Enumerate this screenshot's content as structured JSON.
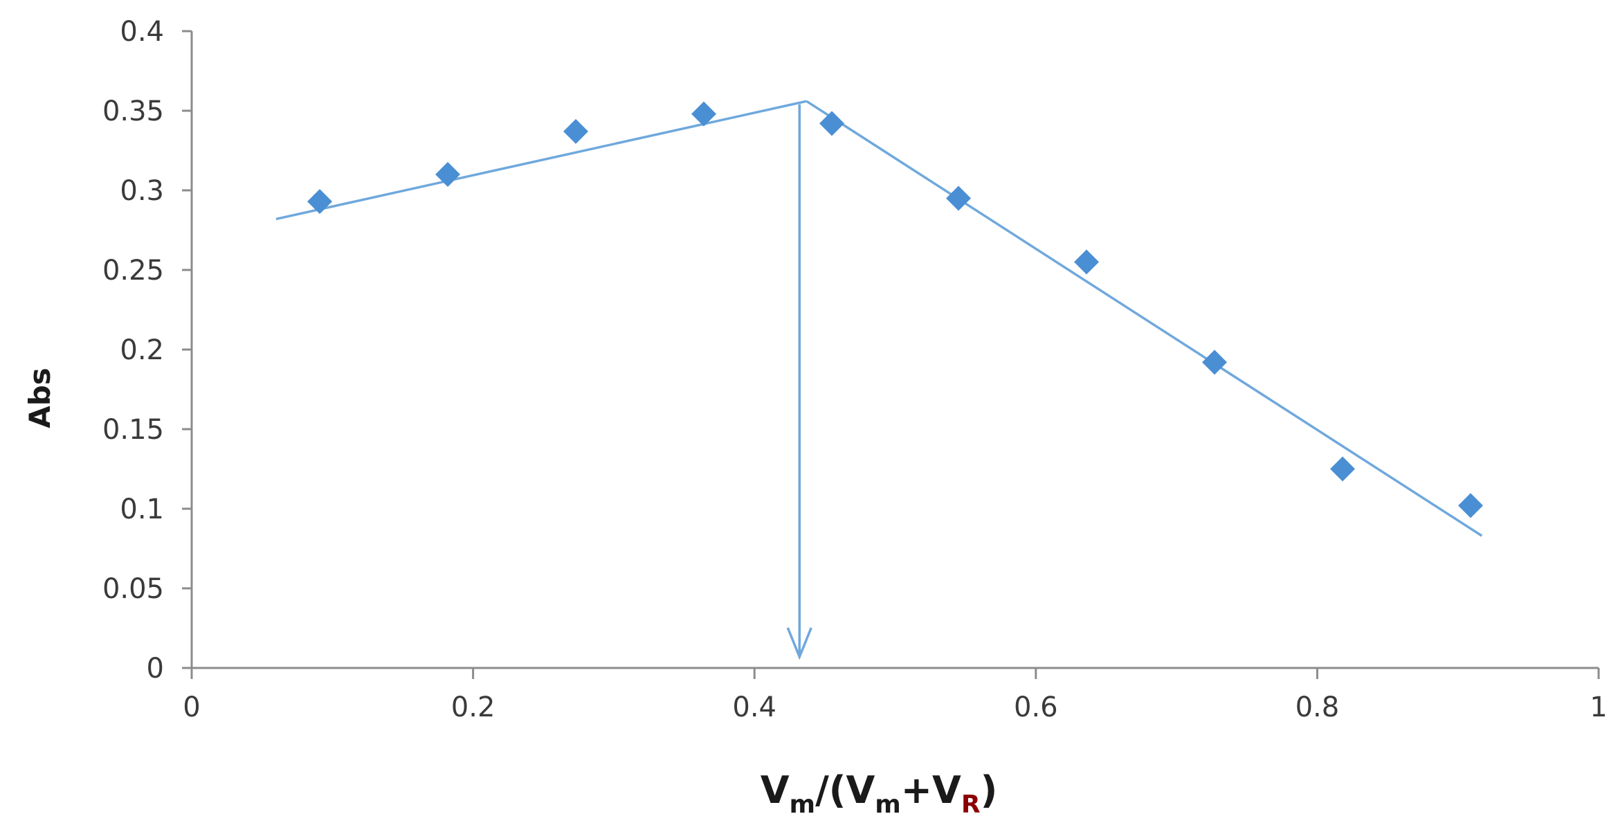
{
  "colors": {
    "axis": "#8c8c8c",
    "marker": "#4a8fd4",
    "trendline": "#6fa8dc",
    "subscript_r": "#8b0000"
  },
  "icons": {
    "marker_shape": "diamond",
    "annotation": "down-arrow"
  },
  "chart_data": {
    "type": "scatter",
    "title": "",
    "ylabel": "Abs",
    "xlabel": {
      "parts": [
        {
          "text": "V",
          "sub": false
        },
        {
          "text": "m",
          "sub": true
        },
        {
          "text": "/(V",
          "sub": false
        },
        {
          "text": "m",
          "sub": true
        },
        {
          "text": "+V",
          "sub": false
        },
        {
          "text": "R",
          "sub": true
        },
        {
          "text": ")",
          "sub": false
        }
      ]
    },
    "xlim": [
      0,
      1
    ],
    "ylim": [
      0,
      0.4
    ],
    "x_ticks": [
      "0",
      "0.2",
      "0.4",
      "0.6",
      "0.8",
      "1"
    ],
    "x_tick_values": [
      0,
      0.2,
      0.4,
      0.6,
      0.8,
      1
    ],
    "y_ticks": [
      "0",
      "0.05",
      "0.1",
      "0.15",
      "0.2",
      "0.25",
      "0.3",
      "0.35",
      "0.4"
    ],
    "y_tick_values": [
      0,
      0.05,
      0.1,
      0.15,
      0.2,
      0.25,
      0.3,
      0.35,
      0.4
    ],
    "grid": false,
    "legend": "none",
    "series": [
      {
        "x": [
          0.091,
          0.182,
          0.273,
          0.364,
          0.455,
          0.545,
          0.636,
          0.727,
          0.818,
          0.909
        ],
        "y": [
          0.293,
          0.31,
          0.337,
          0.348,
          0.342,
          0.295,
          0.255,
          0.192,
          0.125,
          0.102
        ]
      }
    ],
    "trendlines": [
      {
        "x": [
          0.06,
          0.437
        ],
        "y": [
          0.282,
          0.356
        ]
      },
      {
        "x": [
          0.437,
          0.917
        ],
        "y": [
          0.356,
          0.083
        ]
      }
    ],
    "annotations": [
      {
        "type": "arrow",
        "x": 0.432,
        "y_from": 0.354,
        "y_to": 0.007
      }
    ]
  }
}
